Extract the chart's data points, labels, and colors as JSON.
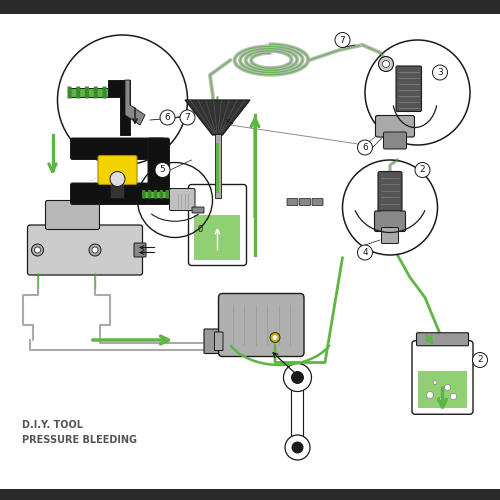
{
  "title_line1": "D.I.Y. TOOL",
  "title_line2": "PRESSURE BLEEDING",
  "bg_color": "#ffffff",
  "border_color": "#2a2a2a",
  "line_color": "#1a1a1a",
  "green_color": "#5db544",
  "yellow_color": "#f5d200",
  "gray_color": "#999999",
  "light_gray": "#c8c8c8",
  "dark_gray": "#444444",
  "fluid_green": "#7dc85a",
  "title_fontsize": 7.0,
  "fig_width": 5.0,
  "fig_height": 5.0,
  "dpi": 100
}
